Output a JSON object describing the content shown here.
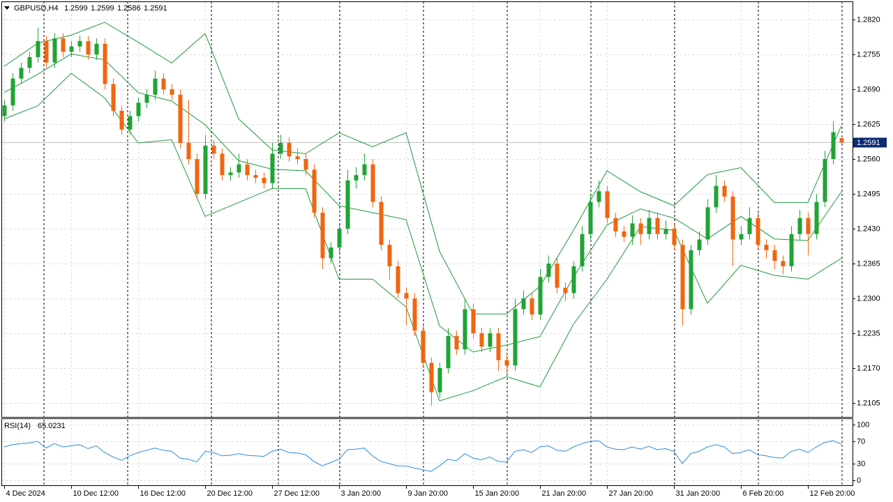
{
  "chart_data": [
    {
      "type": "candlestick",
      "title": "GBPUSD,H4",
      "bull_color": "#21a336",
      "bear_color": "#f2650f",
      "xlim": [
        -0.333,
        101.333
      ],
      "ylim": [
        1.2079,
        1.2854
      ],
      "yticks": [
        {
          "value": 1.282,
          "label": "1.2820"
        },
        1.2755,
        {
          "value": 1.269,
          "label": "1.2690"
        },
        1.2625,
        {
          "value": 1.256,
          "label": "1.2560"
        },
        1.2495,
        {
          "value": 1.243,
          "label": "1.2430"
        },
        1.2365,
        {
          "value": 1.23,
          "label": "1.2300"
        },
        1.2235,
        {
          "value": 1.217,
          "label": "1.2170"
        },
        1.2105
      ],
      "grid": true,
      "x_labels": [
        {
          "value": 0,
          "label": "4 Dec 2024"
        },
        {
          "value": 8,
          "label": "10 Dec 12:00"
        },
        {
          "value": 16,
          "label": "16 Dec 12:00"
        },
        {
          "value": 24,
          "label": "20 Dec 12:00"
        },
        {
          "value": 32,
          "label": "27 Dec 12:00"
        },
        {
          "value": 40,
          "label": "3 Jan 20:00"
        },
        {
          "value": 48,
          "label": "9 Jan 20:00"
        },
        {
          "value": 56,
          "label": "15 Jan 20:00"
        },
        {
          "value": 64,
          "label": "21 Jan 20:00"
        },
        {
          "value": 72,
          "label": "27 Jan 20:00"
        },
        {
          "value": 80,
          "label": "31 Jan 20:00"
        },
        {
          "value": 88,
          "label": "6 Feb 20:00"
        },
        {
          "value": 96,
          "label": "12 Feb 20:00"
        }
      ],
      "open": [
        1.264,
        1.266,
        1.271,
        1.273,
        1.275,
        1.278,
        1.274,
        1.2785,
        1.276,
        1.277,
        1.278,
        1.2755,
        1.2775,
        1.27,
        1.265,
        1.2615,
        1.264,
        1.2665,
        1.268,
        1.271,
        1.269,
        1.268,
        1.259,
        1.256,
        1.2495,
        1.2585,
        1.257,
        1.253,
        1.2535,
        1.255,
        1.253,
        1.2525,
        1.2515,
        1.257,
        1.259,
        1.2565,
        1.256,
        1.254,
        1.246,
        1.2375,
        1.2395,
        1.243,
        1.252,
        1.253,
        1.255,
        1.248,
        1.24,
        1.236,
        1.231,
        1.23,
        1.224,
        1.218,
        1.2125,
        1.217,
        1.223,
        1.2205,
        1.228,
        1.2235,
        1.221,
        1.2235,
        1.2185,
        1.2175,
        1.228,
        1.23,
        1.227,
        1.234,
        1.2365,
        1.232,
        1.231,
        1.236,
        1.242,
        1.248,
        1.25,
        1.245,
        1.2425,
        1.2415,
        1.244,
        1.242,
        1.245,
        1.242,
        1.243,
        1.24,
        1.228,
        1.239,
        1.241,
        1.247,
        1.251,
        1.249,
        1.241,
        1.242,
        1.245,
        1.24,
        1.239,
        1.237,
        1.236,
        1.242,
        1.245,
        1.242,
        1.248,
        1.256,
        1.2599
      ],
      "high": [
        1.267,
        1.272,
        1.274,
        1.276,
        1.2805,
        1.279,
        1.2795,
        1.2795,
        1.278,
        1.279,
        1.279,
        1.2785,
        1.2785,
        1.271,
        1.266,
        1.265,
        1.2675,
        1.269,
        1.2725,
        1.272,
        1.27,
        1.269,
        1.267,
        1.257,
        1.2605,
        1.2595,
        1.258,
        1.2545,
        1.257,
        1.256,
        1.254,
        1.2535,
        1.259,
        1.2605,
        1.26,
        1.258,
        1.257,
        1.255,
        1.247,
        1.2405,
        1.244,
        1.254,
        1.2545,
        1.257,
        1.256,
        1.249,
        1.241,
        1.237,
        1.232,
        1.231,
        1.225,
        1.219,
        1.218,
        1.2245,
        1.224,
        1.23,
        1.229,
        1.2245,
        1.2245,
        1.2245,
        1.2195,
        1.23,
        1.2315,
        1.231,
        1.2355,
        1.238,
        1.2375,
        1.233,
        1.237,
        1.2435,
        1.2495,
        1.252,
        1.251,
        1.246,
        1.2435,
        1.2455,
        1.245,
        1.2465,
        1.246,
        1.2445,
        1.244,
        1.241,
        1.24,
        1.2425,
        1.2485,
        1.253,
        1.252,
        1.25,
        1.2435,
        1.247,
        1.246,
        1.241,
        1.24,
        1.238,
        1.2435,
        1.2465,
        1.246,
        1.2495,
        1.2575,
        1.263,
        1.2599
      ],
      "low": [
        1.263,
        1.265,
        1.27,
        1.272,
        1.274,
        1.273,
        1.273,
        1.275,
        1.275,
        1.276,
        1.2745,
        1.2745,
        1.269,
        1.264,
        1.2605,
        1.2605,
        1.263,
        1.2655,
        1.267,
        1.268,
        1.267,
        1.258,
        1.255,
        1.2485,
        1.2485,
        1.256,
        1.252,
        1.252,
        1.2525,
        1.252,
        1.2515,
        1.2505,
        1.2505,
        1.256,
        1.2555,
        1.255,
        1.253,
        1.245,
        1.2355,
        1.2365,
        1.2385,
        1.242,
        1.2505,
        1.252,
        1.247,
        1.239,
        1.2335,
        1.23,
        1.225,
        1.223,
        1.217,
        1.21,
        1.2115,
        1.216,
        1.2195,
        1.2195,
        1.2225,
        1.22,
        1.22,
        1.2165,
        1.216,
        1.2165,
        1.227,
        1.226,
        1.226,
        1.233,
        1.231,
        1.2295,
        1.23,
        1.235,
        1.241,
        1.247,
        1.244,
        1.2415,
        1.2405,
        1.24,
        1.24,
        1.241,
        1.241,
        1.241,
        1.239,
        1.225,
        1.227,
        1.238,
        1.24,
        1.246,
        1.248,
        1.236,
        1.24,
        1.241,
        1.239,
        1.2375,
        1.2355,
        1.2345,
        1.235,
        1.241,
        1.238,
        1.241,
        1.247,
        1.255,
        1.2586
      ],
      "close": [
        1.266,
        1.271,
        1.273,
        1.275,
        1.278,
        1.274,
        1.2785,
        1.276,
        1.277,
        1.278,
        1.2755,
        1.2775,
        1.27,
        1.265,
        1.2615,
        1.264,
        1.2665,
        1.268,
        1.271,
        1.269,
        1.268,
        1.259,
        1.256,
        1.2495,
        1.2585,
        1.257,
        1.253,
        1.2535,
        1.255,
        1.253,
        1.2525,
        1.2515,
        1.257,
        1.259,
        1.2565,
        1.256,
        1.254,
        1.246,
        1.2375,
        1.2395,
        1.243,
        1.252,
        1.253,
        1.255,
        1.248,
        1.24,
        1.236,
        1.231,
        1.23,
        1.224,
        1.218,
        1.2125,
        1.217,
        1.223,
        1.2205,
        1.228,
        1.2235,
        1.221,
        1.2235,
        1.2185,
        1.2175,
        1.228,
        1.23,
        1.227,
        1.234,
        1.2365,
        1.232,
        1.231,
        1.236,
        1.242,
        1.248,
        1.25,
        1.245,
        1.2425,
        1.2415,
        1.244,
        1.242,
        1.245,
        1.242,
        1.243,
        1.24,
        1.228,
        1.239,
        1.241,
        1.247,
        1.251,
        1.249,
        1.241,
        1.242,
        1.245,
        1.24,
        1.239,
        1.237,
        1.236,
        1.242,
        1.245,
        1.242,
        1.248,
        1.256,
        1.261,
        1.2591
      ],
      "bands": {
        "color": "#1f9a3a",
        "x": [
          0,
          4,
          8,
          12,
          16,
          20,
          24,
          28,
          32,
          36,
          40,
          44,
          48,
          52,
          56,
          60,
          64,
          68,
          72,
          76,
          80,
          84,
          88,
          92,
          96,
          100
        ],
        "upper": [
          1.2733,
          1.2776,
          1.2791,
          1.2815,
          1.2778,
          1.2739,
          1.2794,
          1.2635,
          1.2577,
          1.257,
          1.2609,
          1.2583,
          1.2609,
          1.2388,
          1.2271,
          1.2271,
          1.2323,
          1.2427,
          1.2538,
          1.2499,
          1.2473,
          1.2531,
          1.2544,
          1.2479,
          1.2479,
          1.2622
        ],
        "middle": [
          1.2684,
          1.2718,
          1.2756,
          1.2745,
          1.2684,
          1.2668,
          1.2624,
          1.2557,
          1.2541,
          1.2538,
          1.2473,
          1.246,
          1.2447,
          1.2249,
          1.22,
          1.2213,
          1.2229,
          1.234,
          1.2437,
          1.2467,
          1.245,
          1.2411,
          1.2453,
          1.2411,
          1.2408,
          1.2499
        ],
        "lower": [
          1.2635,
          1.2659,
          1.272,
          1.2674,
          1.259,
          1.2596,
          1.2453,
          1.2479,
          1.2505,
          1.2505,
          1.2336,
          1.2336,
          1.2284,
          1.2109,
          1.2128,
          1.2154,
          1.2135,
          1.2252,
          1.2336,
          1.2434,
          1.2427,
          1.2291,
          1.2362,
          1.2343,
          1.2336,
          1.2375
        ]
      }
    },
    {
      "type": "line",
      "title": "RSI(14)",
      "color": "#2b8ae0",
      "xlim": [
        -0.333,
        101.333
      ],
      "ylim": [
        -8.75,
        110
      ],
      "yticks": [
        0,
        30,
        70,
        100
      ],
      "values": [
        60,
        64,
        66,
        67,
        70,
        58,
        66,
        60,
        62,
        64,
        57,
        62,
        50,
        42,
        36,
        44,
        50,
        54,
        58,
        54,
        52,
        40,
        38,
        33,
        52,
        50,
        44,
        45,
        48,
        45,
        44,
        43,
        52,
        56,
        50,
        49,
        46,
        34,
        26,
        32,
        38,
        55,
        56,
        58,
        44,
        34,
        30,
        26,
        26,
        22,
        19,
        16,
        26,
        38,
        35,
        48,
        40,
        37,
        42,
        34,
        33,
        52,
        55,
        50,
        60,
        62,
        54,
        52,
        60,
        66,
        70,
        71,
        60,
        56,
        55,
        60,
        56,
        61,
        55,
        57,
        52,
        30,
        48,
        52,
        60,
        64,
        60,
        48,
        50,
        55,
        46,
        44,
        41,
        40,
        52,
        56,
        50,
        60,
        68,
        71,
        65.0231
      ]
    }
  ]
}
